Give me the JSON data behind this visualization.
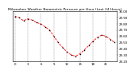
{
  "title": "Milwaukee Weather Barometric Pressure per Hour (Last 24 Hours)",
  "hours": [
    0,
    1,
    2,
    3,
    4,
    5,
    6,
    7,
    8,
    9,
    10,
    11,
    12,
    13,
    14,
    15,
    16,
    17,
    18,
    19,
    20,
    21,
    22,
    23
  ],
  "pressure": [
    29.92,
    29.9,
    29.85,
    29.88,
    29.86,
    29.82,
    29.8,
    29.75,
    29.7,
    29.6,
    29.5,
    29.42,
    29.35,
    29.3,
    29.28,
    29.32,
    29.38,
    29.45,
    29.52,
    29.58,
    29.62,
    29.6,
    29.55,
    29.5
  ],
  "line_color": "#ff0000",
  "dot_color": "#000000",
  "bg_color": "#ffffff",
  "grid_color": "#888888",
  "title_color": "#000000",
  "ylim_min": 29.2,
  "ylim_max": 30.0,
  "title_fontsize": 3.2,
  "tick_fontsize": 2.8,
  "line_width": 0.6,
  "dot_size": 1.2,
  "ytick_step": 0.1
}
